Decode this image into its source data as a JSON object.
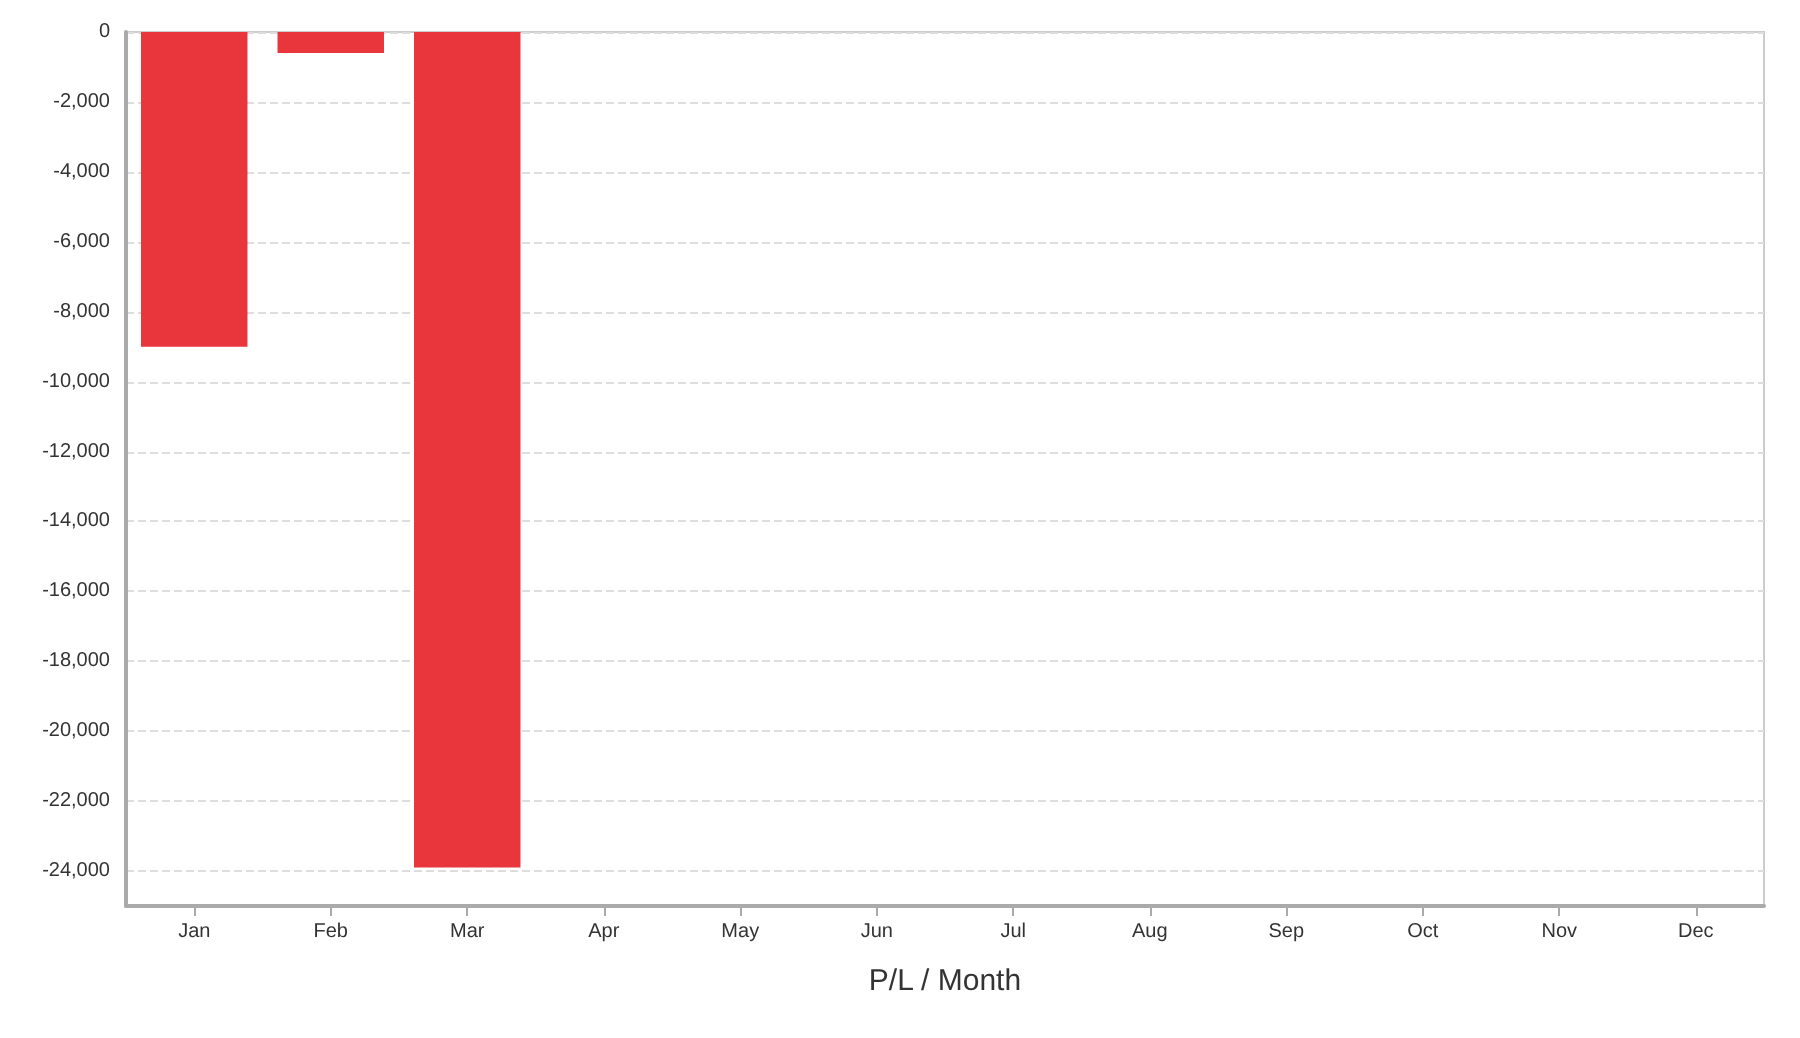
{
  "chart_data": {
    "type": "bar",
    "xlabel": "P/L / Month",
    "categories": [
      "Jan",
      "Feb",
      "Mar",
      "Apr",
      "May",
      "Jun",
      "Jul",
      "Aug",
      "Sep",
      "Oct",
      "Nov",
      "Dec"
    ],
    "values": [
      -9000,
      -600,
      -23900,
      null,
      null,
      null,
      null,
      null,
      null,
      null,
      null,
      null
    ],
    "color": "#e8363c",
    "ylim": [
      -25000,
      0
    ],
    "yticks": [
      0,
      {
        "value": -2000,
        "label": "-2,000"
      },
      {
        "value": -4000,
        "label": "-4,000"
      },
      {
        "value": -6000,
        "label": "-6,000"
      },
      {
        "value": -8000,
        "label": "-8,000"
      },
      {
        "value": -10000,
        "label": "-10,000"
      },
      {
        "value": -12000,
        "label": "-12,000"
      },
      {
        "value": -14000,
        "label": "-14,000"
      },
      {
        "value": -16000,
        "label": "-16,000"
      },
      {
        "value": -18000,
        "label": "-18,000"
      },
      {
        "value": -20000,
        "label": "-20,000"
      },
      {
        "value": -22000,
        "label": "-22,000"
      },
      {
        "value": -24000,
        "label": "-24,000"
      }
    ],
    "grid": "y"
  }
}
